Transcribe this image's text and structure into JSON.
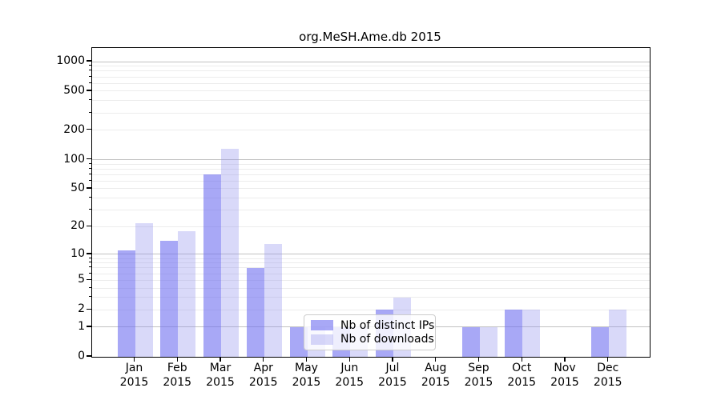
{
  "chart_data": {
    "type": "bar",
    "title": "org.MeSH.Ame.db 2015",
    "categories": [
      "Jan 2015",
      "Feb 2015",
      "Mar 2015",
      "Apr 2015",
      "May 2015",
      "Jun 2015",
      "Jul 2015",
      "Aug 2015",
      "Sep 2015",
      "Oct 2015",
      "Nov 2015",
      "Dec 2015"
    ],
    "series": [
      {
        "name": "Nb of distinct IPs",
        "color": "#6e6ef0",
        "alpha": 0.6,
        "values": [
          11,
          14,
          70,
          7,
          1,
          1,
          2,
          0,
          1,
          2,
          0,
          1
        ]
      },
      {
        "name": "Nb of downloads",
        "color": "#9292ee",
        "alpha": 0.35,
        "values": [
          22,
          18,
          130,
          13,
          1,
          1,
          3,
          0,
          1,
          2,
          0,
          2
        ]
      }
    ],
    "xlabel": "",
    "ylabel": "",
    "yscale": "log1p",
    "yticks": [
      0,
      1,
      2,
      5,
      10,
      20,
      50,
      100,
      200,
      500,
      1000
    ],
    "ylim": [
      0,
      1400
    ],
    "grid": {
      "axis": "y",
      "major_values": [
        1,
        10,
        100,
        1000
      ],
      "minor_multiples": [
        2,
        3,
        4,
        5,
        6,
        7,
        8,
        9
      ],
      "minor_decades": [
        1,
        10,
        100
      ]
    },
    "legend": {
      "position": "inside-bottom-center",
      "entries": [
        "Nb of distinct IPs",
        "Nb of downloads"
      ]
    },
    "colors": {
      "major_grid": "#c2c2c2",
      "minor_grid": "#ececec",
      "spine": "#000000",
      "text": "#000000"
    }
  }
}
